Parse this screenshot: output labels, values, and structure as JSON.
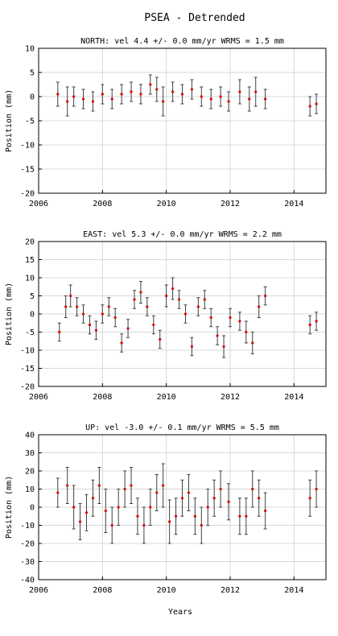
{
  "title": "PSEA - Detrended",
  "xlabel": "Years",
  "chart_data": [
    {
      "type": "scatter",
      "title": "NORTH: vel 4.4 +/- 0.0 mm/yr WRMS = 1.5 mm",
      "ylabel": "Position (mm)",
      "xlim": [
        2006,
        2015
      ],
      "ylim": [
        -20,
        10
      ],
      "xticks": [
        2006,
        2008,
        2010,
        2012,
        2014
      ],
      "yticks": [
        -20,
        -15,
        -10,
        -5,
        0,
        5,
        10
      ],
      "grid": true,
      "series": [
        {
          "errorbars": true,
          "x": [
            2006.6,
            2006.9,
            2007.1,
            2007.4,
            2007.7,
            2008.0,
            2008.3,
            2008.6,
            2008.9,
            2009.2,
            2009.5,
            2009.7,
            2009.9,
            2010.2,
            2010.5,
            2010.8,
            2011.1,
            2011.4,
            2011.7,
            2011.95,
            2012.3,
            2012.6,
            2012.8,
            2013.1,
            2014.5,
            2014.7
          ],
          "y": [
            0.5,
            -1.0,
            0.0,
            -0.5,
            -1.0,
            0.5,
            -0.5,
            0.5,
            1.0,
            0.5,
            2.5,
            1.5,
            -1.0,
            1.0,
            0.5,
            1.5,
            0.0,
            -0.5,
            0.0,
            -1.0,
            1.0,
            -0.5,
            1.0,
            -0.5,
            -2.0,
            -1.5
          ],
          "err": [
            2.5,
            3.0,
            2.0,
            2.0,
            2.0,
            2.0,
            2.0,
            2.0,
            2.0,
            2.0,
            2.0,
            2.5,
            3.0,
            2.0,
            2.0,
            2.0,
            2.0,
            2.0,
            2.0,
            2.0,
            2.5,
            2.5,
            3.0,
            2.0,
            2.0,
            2.0
          ]
        }
      ]
    },
    {
      "type": "scatter",
      "title": "EAST: vel 5.3 +/- 0.0 mm/yr WRMS = 2.2 mm",
      "ylabel": "Position (mm)",
      "xlim": [
        2006,
        2015
      ],
      "ylim": [
        -20,
        20
      ],
      "xticks": [
        2006,
        2008,
        2010,
        2012,
        2014
      ],
      "yticks": [
        -20,
        -15,
        -10,
        -5,
        0,
        5,
        10,
        15,
        20
      ],
      "grid": true,
      "series": [
        {
          "errorbars": true,
          "x": [
            2006.65,
            2006.85,
            2007.0,
            2007.2,
            2007.4,
            2007.6,
            2007.8,
            2008.0,
            2008.2,
            2008.4,
            2008.6,
            2008.8,
            2009.0,
            2009.2,
            2009.4,
            2009.6,
            2009.8,
            2010.0,
            2010.2,
            2010.4,
            2010.6,
            2010.8,
            2011.0,
            2011.2,
            2011.4,
            2011.6,
            2011.8,
            2012.0,
            2012.3,
            2012.5,
            2012.7,
            2012.9,
            2013.1,
            2014.5,
            2014.7
          ],
          "y": [
            -5.0,
            2.0,
            5.0,
            2.0,
            0.0,
            -3.0,
            -4.5,
            0.0,
            2.0,
            -1.0,
            -8.0,
            -4.0,
            4.0,
            6.0,
            2.0,
            -3.0,
            -7.0,
            5.0,
            7.0,
            4.0,
            0.0,
            -9.0,
            2.0,
            4.0,
            -1.0,
            -6.0,
            -9.0,
            -1.0,
            -2.0,
            -5.0,
            -8.0,
            2.0,
            5.0,
            -3.0,
            -2.0
          ],
          "err": [
            2.5,
            3.0,
            3.0,
            2.5,
            2.5,
            2.5,
            2.5,
            2.5,
            2.5,
            2.5,
            2.5,
            2.5,
            2.5,
            3.0,
            2.5,
            2.5,
            2.5,
            3.0,
            3.0,
            2.5,
            2.5,
            2.5,
            2.5,
            2.5,
            2.5,
            2.5,
            3.0,
            2.5,
            2.5,
            3.0,
            3.0,
            3.0,
            2.5,
            2.5,
            2.5
          ]
        }
      ]
    },
    {
      "type": "scatter",
      "title": "UP: vel -3.0 +/- 0.1 mm/yr WRMS = 5.5 mm",
      "ylabel": "Position (mm)",
      "xlim": [
        2006,
        2015
      ],
      "ylim": [
        -40,
        40
      ],
      "xticks": [
        2006,
        2008,
        2010,
        2012,
        2014
      ],
      "yticks": [
        -40,
        -30,
        -20,
        -10,
        0,
        10,
        20,
        30,
        40
      ],
      "grid": true,
      "series": [
        {
          "errorbars": true,
          "x": [
            2006.6,
            2006.9,
            2007.1,
            2007.3,
            2007.5,
            2007.7,
            2007.9,
            2008.1,
            2008.3,
            2008.5,
            2008.7,
            2008.9,
            2009.1,
            2009.3,
            2009.5,
            2009.7,
            2009.9,
            2010.1,
            2010.3,
            2010.5,
            2010.7,
            2010.9,
            2011.1,
            2011.3,
            2011.5,
            2011.7,
            2011.95,
            2012.3,
            2012.5,
            2012.7,
            2012.9,
            2013.1,
            2014.5,
            2014.7
          ],
          "y": [
            8.0,
            12.0,
            0.0,
            -8.0,
            -3.0,
            5.0,
            12.0,
            -2.0,
            -10.0,
            0.0,
            10.0,
            12.0,
            -5.0,
            -10.0,
            0.0,
            8.0,
            12.0,
            -8.0,
            -5.0,
            5.0,
            8.0,
            -5.0,
            -10.0,
            0.0,
            5.0,
            10.0,
            3.0,
            -5.0,
            -5.0,
            10.0,
            5.0,
            -2.0,
            5.0,
            10.0
          ],
          "err": [
            8,
            10,
            12,
            10,
            10,
            10,
            10,
            12,
            10,
            10,
            10,
            10,
            10,
            10,
            10,
            10,
            12,
            12,
            10,
            10,
            10,
            10,
            10,
            10,
            10,
            10,
            10,
            10,
            10,
            10,
            10,
            10,
            10,
            10
          ]
        }
      ]
    }
  ]
}
